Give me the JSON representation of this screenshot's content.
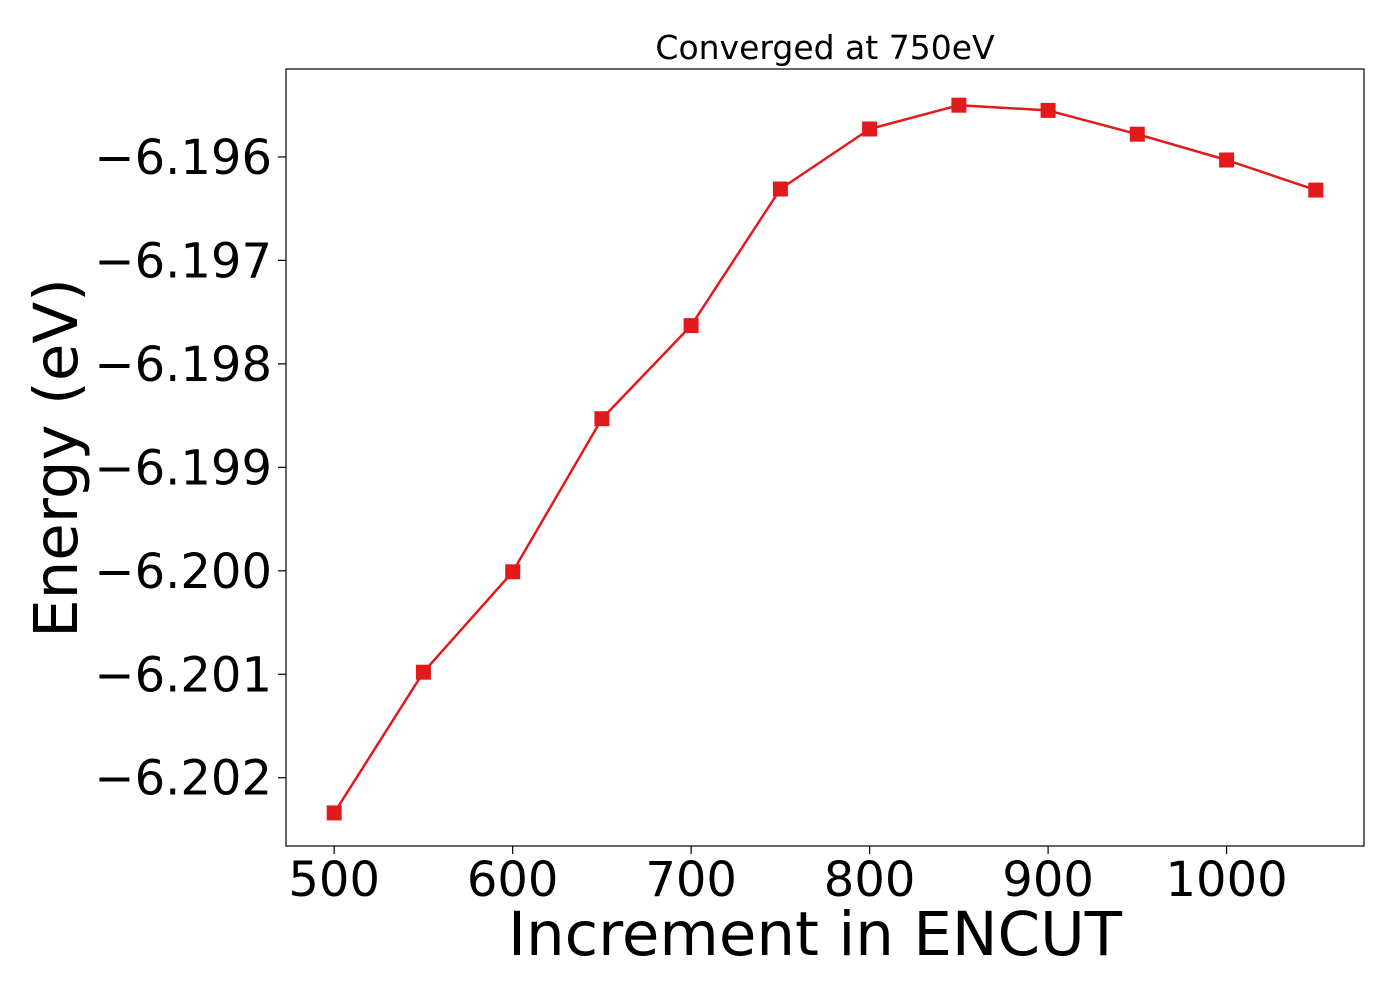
{
  "chart_data": {
    "type": "line",
    "title": "Converged at 750eV",
    "xlabel": "Increment in ENCUT",
    "ylabel": "Energy (eV)",
    "x": [
      500,
      550,
      600,
      650,
      700,
      750,
      800,
      850,
      900,
      950,
      1000,
      1050
    ],
    "series": [
      {
        "values": [
          -6.20234,
          -6.20098,
          -6.20001,
          -6.19853,
          -6.19763,
          -6.19631,
          -6.19573,
          -6.1955,
          -6.19555,
          -6.19578,
          -6.19603,
          -6.19632
        ],
        "color": "#e31a1c",
        "marker": "square"
      }
    ],
    "xlim": [
      473,
      1077
    ],
    "ylim": [
      -6.20266,
      -6.19515
    ],
    "xticks": [
      500,
      600,
      700,
      800,
      900,
      1000
    ],
    "xtick_labels": [
      "500",
      "600",
      "700",
      "800",
      "900",
      "1000"
    ],
    "yticks": [
      -6.202,
      -6.201,
      -6.2,
      -6.199,
      -6.198,
      -6.197,
      -6.196
    ],
    "ytick_labels": [
      "−6.202",
      "−6.201",
      "−6.200",
      "−6.199",
      "−6.198",
      "−6.197",
      "−6.196"
    ],
    "grid": false,
    "legend": "none"
  }
}
